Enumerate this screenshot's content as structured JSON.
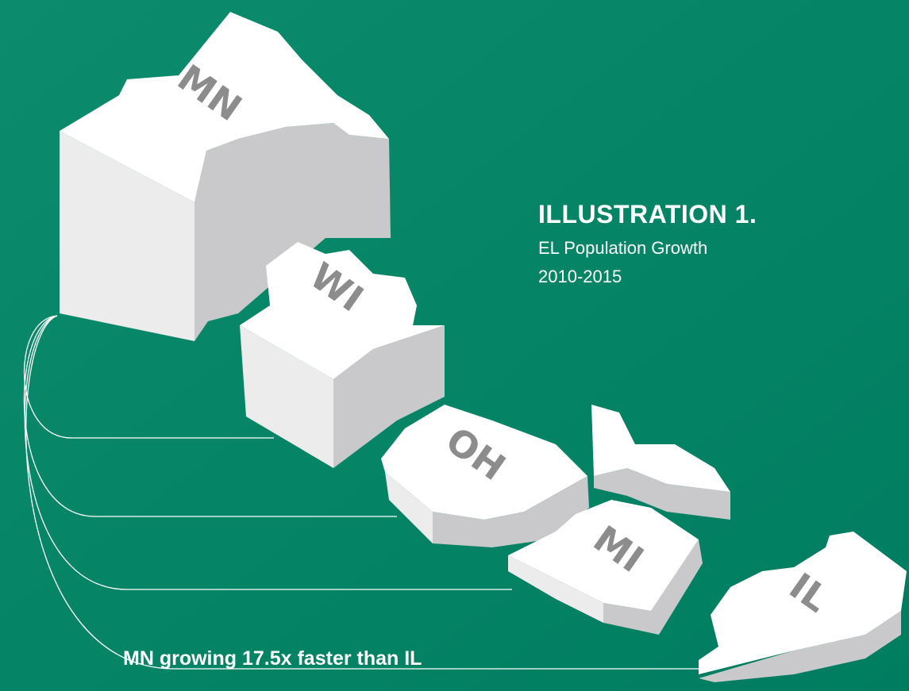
{
  "title": {
    "heading": "ILLUSTRATION 1.",
    "subtitle": "EL Population Growth",
    "period": "2010-2015"
  },
  "states": [
    {
      "label": "MN"
    },
    {
      "label": "WI"
    },
    {
      "label": "OH"
    },
    {
      "label": "MI"
    },
    {
      "label": "IL"
    }
  ],
  "caption": "MN growing 17.5x faster than IL"
}
